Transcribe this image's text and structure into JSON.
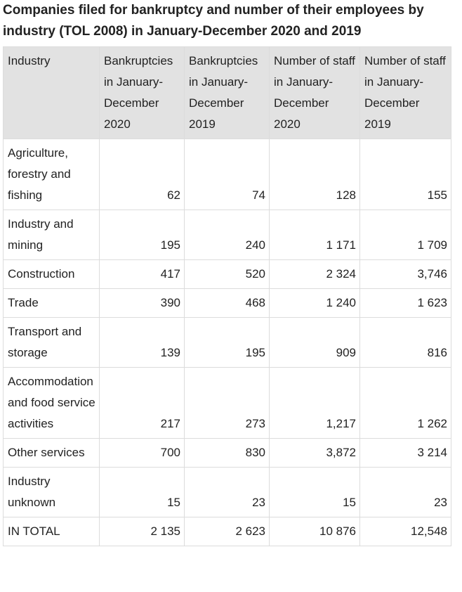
{
  "title": "Companies filed for bankruptcy and number of their employees by industry (TOL 2008) in January-December 2020 and 2019",
  "table": {
    "header": [
      "Industry",
      "Bankruptcies in January-December 2020",
      "Bankruptcies in January-December 2019",
      "Number of staff in January-December 2020",
      "Number of staff in January-December 2019"
    ],
    "rows": [
      [
        "Agriculture, forestry and fishing",
        "62",
        "74",
        "128",
        "155"
      ],
      [
        "Industry and mining",
        "195",
        "240",
        "1 171",
        "1 709"
      ],
      [
        "Construction",
        "417",
        "520",
        "2 324",
        "3,746"
      ],
      [
        "Trade",
        "390",
        "468",
        "1 240",
        "1 623"
      ],
      [
        "Transport and storage",
        "139",
        "195",
        "909",
        "816"
      ],
      [
        "Accommodation and food service activities",
        "217",
        "273",
        "1,217",
        "1 262"
      ],
      [
        "Other services",
        "700",
        "830",
        "3,872",
        "3 214"
      ],
      [
        "Industry unknown",
        "15",
        "23",
        "15",
        "23"
      ],
      [
        "IN TOTAL",
        "2 135",
        "2 623",
        "10 876",
        "12,548"
      ]
    ]
  }
}
